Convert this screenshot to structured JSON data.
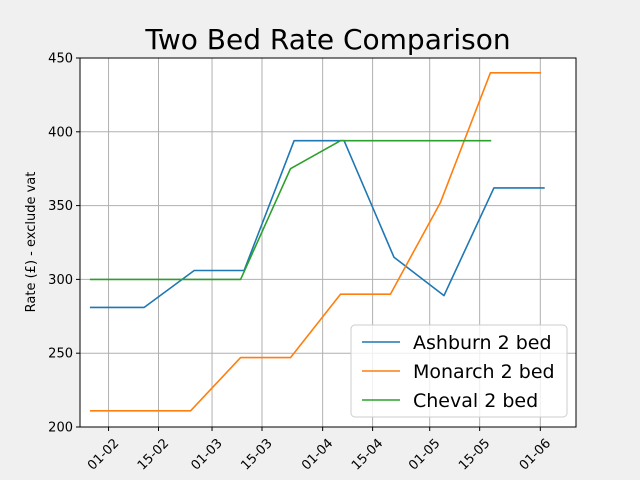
{
  "chart_data": {
    "type": "line",
    "title": "Two Bed Rate Comparison",
    "xlabel": "",
    "ylabel": "Rate (£) - exclude vat",
    "ylim": [
      200,
      450
    ],
    "yticks": [
      200,
      250,
      300,
      350,
      400,
      450
    ],
    "xlim": [
      "2024-01-24",
      "2024-06-11"
    ],
    "xticks": [
      {
        "date": "2024-02-01",
        "label": "01-02"
      },
      {
        "date": "2024-02-15",
        "label": "15-02"
      },
      {
        "date": "2024-03-01",
        "label": "01-03"
      },
      {
        "date": "2024-03-15",
        "label": "15-03"
      },
      {
        "date": "2024-04-01",
        "label": "01-04"
      },
      {
        "date": "2024-04-15",
        "label": "15-04"
      },
      {
        "date": "2024-05-01",
        "label": "01-05"
      },
      {
        "date": "2024-05-15",
        "label": "15-05"
      },
      {
        "date": "2024-06-01",
        "label": "01-06"
      }
    ],
    "grid": true,
    "legend_position": "lower-right",
    "series": [
      {
        "name": "Ashburn 2 bed",
        "color": "#1f77b4",
        "x": [
          "2024-01-27",
          "2024-02-11",
          "2024-02-25",
          "2024-03-10",
          "2024-03-24",
          "2024-04-07",
          "2024-04-21",
          "2024-05-05",
          "2024-05-19",
          "2024-06-02"
        ],
        "y": [
          281,
          281,
          306,
          306,
          394,
          394,
          315,
          289,
          362,
          362
        ]
      },
      {
        "name": "Monarch 2 bed",
        "color": "#ff7f0e",
        "x": [
          "2024-01-27",
          "2024-02-10",
          "2024-02-24",
          "2024-03-09",
          "2024-03-23",
          "2024-04-06",
          "2024-04-20",
          "2024-05-04",
          "2024-05-18",
          "2024-06-01"
        ],
        "y": [
          211,
          211,
          211,
          247,
          247,
          290,
          290,
          352,
          440,
          440
        ]
      },
      {
        "name": "Cheval 2 bed",
        "color": "#2ca02c",
        "x": [
          "2024-01-27",
          "2024-02-10",
          "2024-02-24",
          "2024-03-09",
          "2024-03-23",
          "2024-04-06",
          "2024-04-20",
          "2024-05-04",
          "2024-05-18"
        ],
        "y": [
          300,
          300,
          300,
          300,
          375,
          394,
          394,
          394,
          394
        ]
      }
    ]
  }
}
